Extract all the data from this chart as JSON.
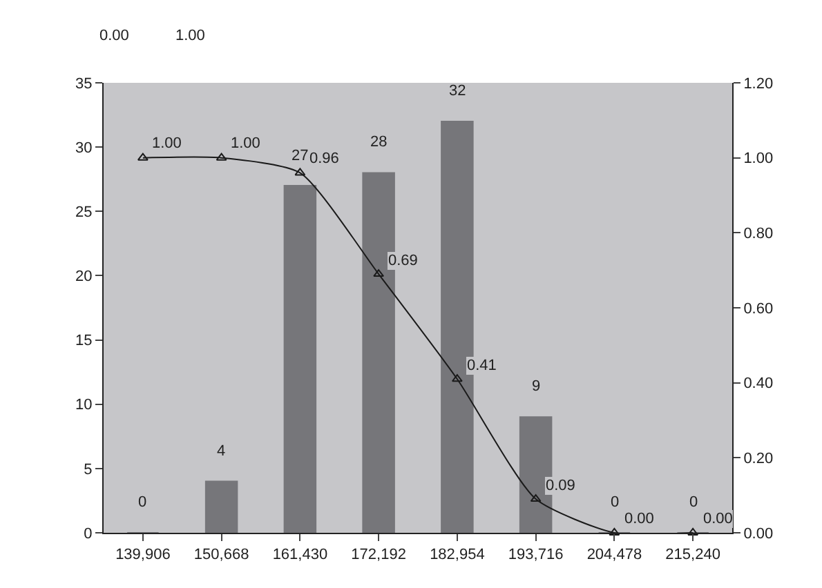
{
  "chart_data": {
    "type": "bar",
    "categories": [
      "139,906",
      "150,668",
      "161,430",
      "172,192",
      "182,954",
      "193,716",
      "204,478",
      "215,240"
    ],
    "series": [
      {
        "color": "#76767a",
        "values": [
          0,
          4,
          27,
          28,
          32,
          9,
          0,
          0
        ]
      },
      {
        "type": "line",
        "axis": "y2",
        "color": "#1a1a1a",
        "marker": "triangle",
        "values": [
          1.0,
          1.0,
          0.96,
          0.69,
          0.41,
          0.09,
          0.0,
          0.0
        ],
        "value_labels": [
          "1.00",
          "1.00",
          "0.96",
          "0.69",
          "0.41",
          "0.09",
          "0.00",
          "0.00"
        ]
      }
    ],
    "data_labels": true,
    "ylim": [
      0,
      35
    ],
    "yticks": [
      0,
      5,
      10,
      15,
      20,
      25,
      30,
      35
    ],
    "y2lim": [
      0,
      1.2
    ],
    "y2ticks": [
      {
        "value": 0,
        "label": "0.00"
      },
      {
        "value": 0.2,
        "label": "0.20"
      },
      {
        "value": 0.4,
        "label": "0.40"
      },
      {
        "value": 0.6,
        "label": "0.60"
      },
      {
        "value": 0.8,
        "label": "0.80"
      },
      {
        "value": 1.0,
        "label": "1.00"
      },
      {
        "value": 1.2,
        "label": "1.20"
      }
    ],
    "grid": false,
    "annotations": [
      "0.00",
      "1.00"
    ]
  }
}
